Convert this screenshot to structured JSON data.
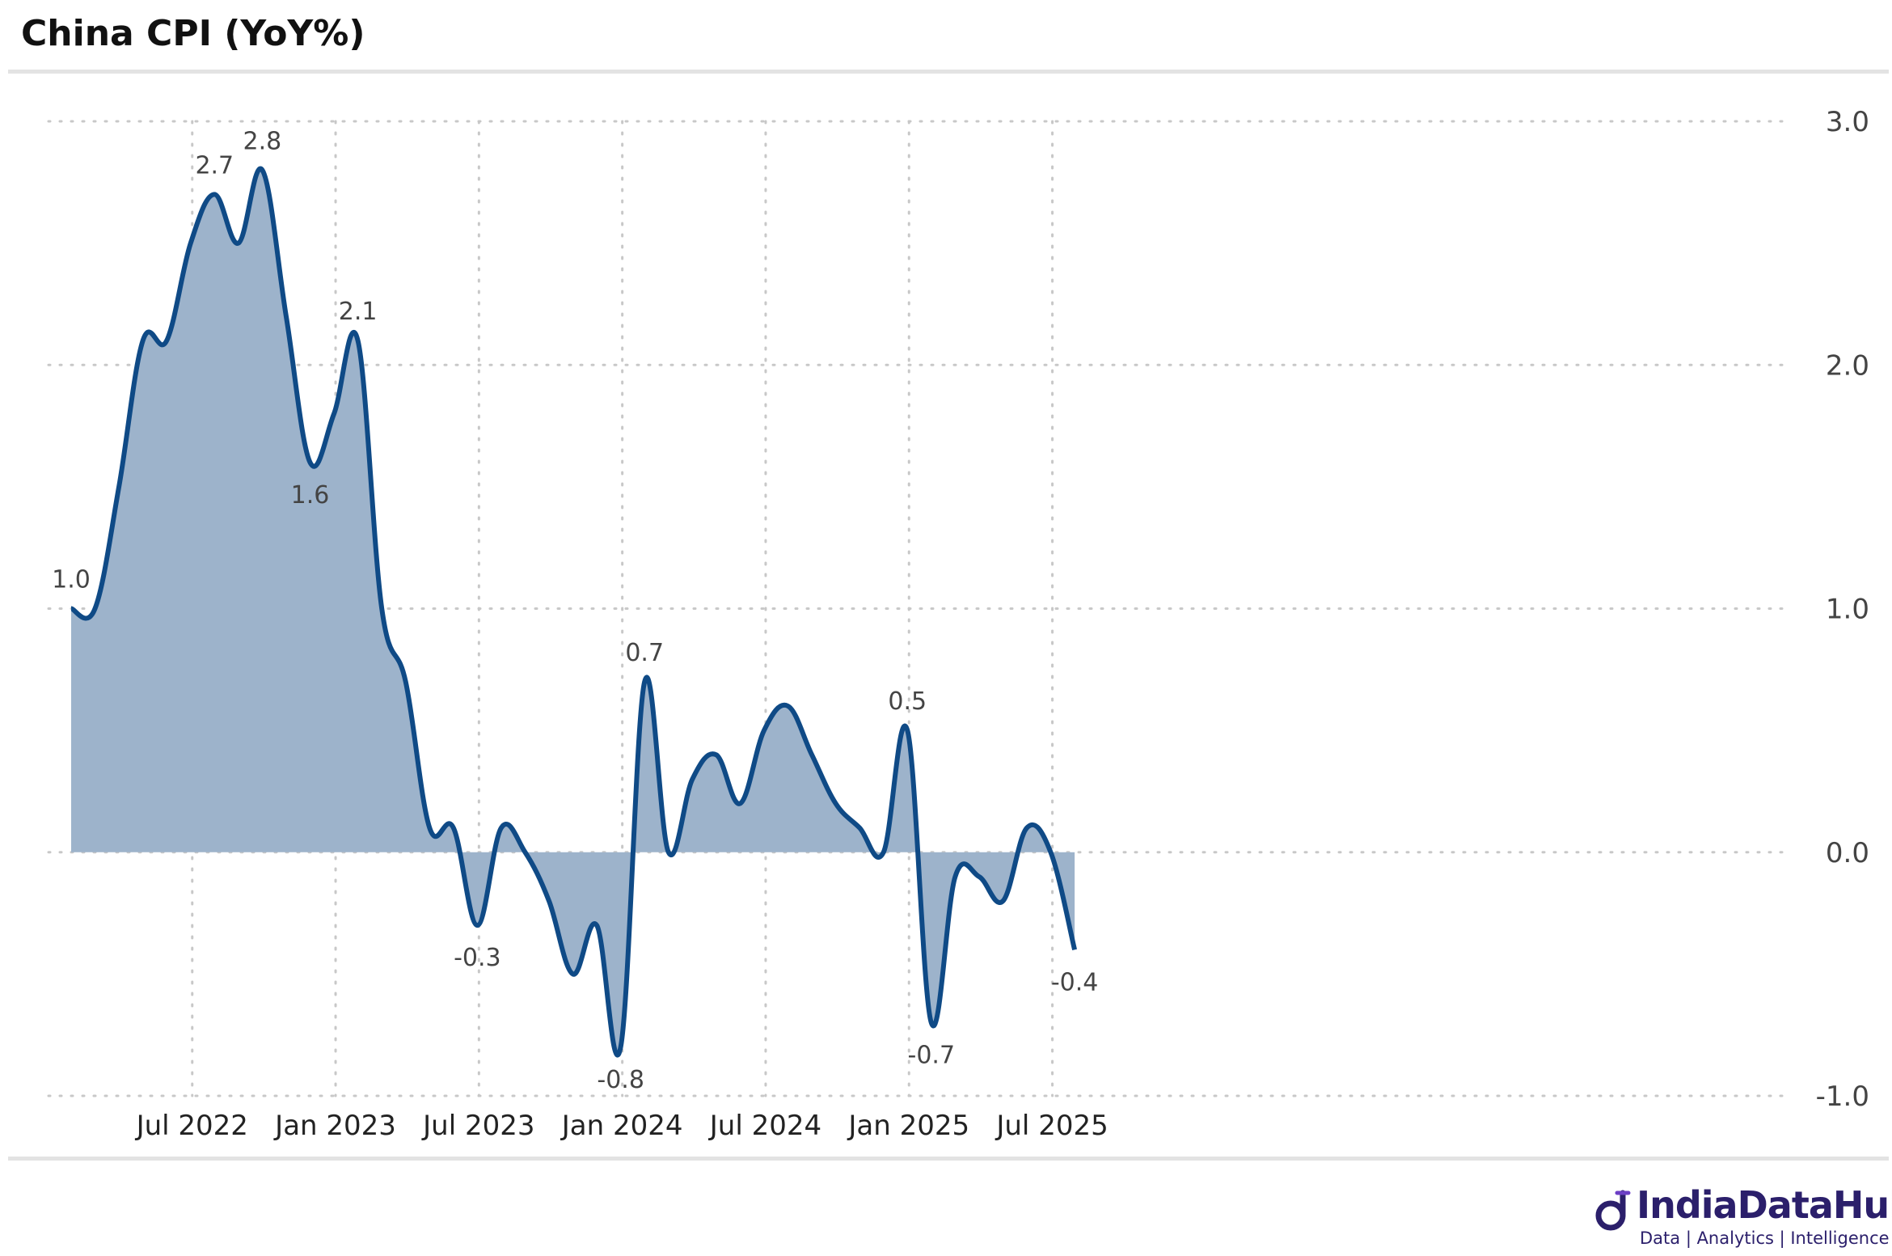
{
  "title": "China CPI (YoY%)",
  "brand": {
    "name": "IndiaDataHub",
    "tagline": "Data | Analytics | Intelligence",
    "color": "#2b1f6b"
  },
  "colors": {
    "line": "#0f4a86",
    "fill": "#9db3cb",
    "grid": "#c8c8c8",
    "tick": "#444444",
    "label": "#444444"
  },
  "chart_data": {
    "type": "area",
    "title": "China CPI (YoY%)",
    "xlabel": "",
    "ylabel": "",
    "ylim": [
      -1.0,
      3.0
    ],
    "yticks": [
      3.0,
      2.0,
      1.0,
      0.0,
      -1.0
    ],
    "ytick_labels": [
      "3.0",
      "2.0",
      "1.0",
      "0.0",
      "-1.0"
    ],
    "y_axis_position": "right",
    "grid": true,
    "xticks": [
      {
        "label": "Jul 2022",
        "month_index": 5
      },
      {
        "label": "Jan 2023",
        "month_index": 11
      },
      {
        "label": "Jul 2023",
        "month_index": 17
      },
      {
        "label": "Jan 2024",
        "month_index": 23
      },
      {
        "label": "Jul 2024",
        "month_index": 29
      },
      {
        "label": "Jan 2025",
        "month_index": 35
      },
      {
        "label": "Jul 2025",
        "month_index": 41
      }
    ],
    "x": [
      "Feb 2022",
      "Mar 2022",
      "Apr 2022",
      "May 2022",
      "Jun 2022",
      "Jul 2022",
      "Aug 2022",
      "Sep 2022",
      "Oct 2022",
      "Nov 2022",
      "Dec 2022",
      "Jan 2023",
      "Feb 2023",
      "Mar 2023",
      "Apr 2023",
      "May 2023",
      "Jun 2023",
      "Jul 2023",
      "Aug 2023",
      "Sep 2023",
      "Oct 2023",
      "Nov 2023",
      "Dec 2023",
      "Jan 2024",
      "Feb 2024",
      "Mar 2024",
      "Apr 2024",
      "May 2024",
      "Jun 2024",
      "Jul 2024",
      "Aug 2024",
      "Sep 2024",
      "Oct 2024",
      "Nov 2024",
      "Dec 2024",
      "Jan 2025",
      "Feb 2025",
      "Mar 2025",
      "Apr 2025",
      "May 2025",
      "Jun 2025",
      "Jul 2025",
      "Aug 2025"
    ],
    "series": [
      {
        "values": [
          1.0,
          1.0,
          1.5,
          2.1,
          2.1,
          2.5,
          2.7,
          2.5,
          2.8,
          2.2,
          1.6,
          1.8,
          2.1,
          1.0,
          0.7,
          0.1,
          0.1,
          -0.3,
          0.1,
          0.0,
          -0.2,
          -0.5,
          -0.3,
          -0.8,
          0.7,
          0.0,
          0.3,
          0.4,
          0.2,
          0.5,
          0.6,
          0.4,
          0.2,
          0.1,
          0.0,
          0.5,
          -0.7,
          -0.1,
          -0.1,
          -0.2,
          0.1,
          0.0,
          -0.4
        ]
      }
    ],
    "annotations": [
      {
        "index": 0,
        "text": "1.0",
        "position": "above"
      },
      {
        "index": 6,
        "text": "2.7",
        "position": "above"
      },
      {
        "index": 8,
        "text": "2.8",
        "position": "above"
      },
      {
        "index": 10,
        "text": "1.6",
        "position": "below"
      },
      {
        "index": 12,
        "text": "2.1",
        "position": "above"
      },
      {
        "index": 17,
        "text": "-0.3",
        "position": "below"
      },
      {
        "index": 23,
        "text": "-0.8",
        "position": "below"
      },
      {
        "index": 24,
        "text": "0.7",
        "position": "above"
      },
      {
        "index": 35,
        "text": "0.5",
        "position": "above"
      },
      {
        "index": 36,
        "text": "-0.7",
        "position": "below"
      },
      {
        "index": 42,
        "text": "-0.4",
        "position": "below"
      }
    ]
  }
}
